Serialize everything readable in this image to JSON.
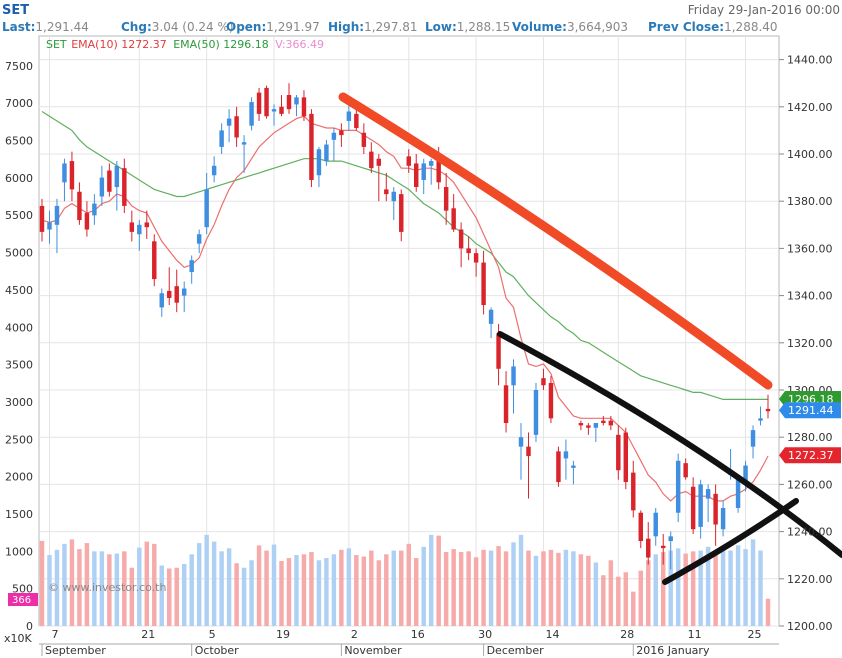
{
  "header": {
    "symbol": "SET",
    "date": "Friday 29-Jan-2016 00:00",
    "stats": [
      {
        "label": "Last:",
        "value": "1,291.44"
      },
      {
        "label": "Chg:",
        "value": "3.04 (0.24 %)"
      },
      {
        "label": "Open:",
        "value": "1,291.97"
      },
      {
        "label": "High:",
        "value": "1,297.81"
      },
      {
        "label": "Low:",
        "value": "1,288.15"
      },
      {
        "label": "Volume:",
        "value": "3,664,903"
      },
      {
        "label": "Prev Close:",
        "value": "1,288.40"
      }
    ]
  },
  "legend": [
    {
      "text": "SET",
      "color": "#2a9a3a"
    },
    {
      "text": "EMA(10) 1272.37",
      "color": "#e23b3b"
    },
    {
      "text": "EMA(50) 1296.18",
      "color": "#2a9a3a"
    },
    {
      "text": "V:366.49",
      "color": "#e98ccf"
    }
  ],
  "watermark": "© www.investor.co.th",
  "volume_badge": "366",
  "volume_unit": "x10K",
  "colors": {
    "up": "#3f8ee0",
    "down": "#d9242b",
    "ema10": "#ee6e6e",
    "ema50": "#5fb05f",
    "vol_up": "#aed0f4",
    "vol_down": "#f6aaaa",
    "trend_red": "#f04a26",
    "trend_black": "#111111",
    "badge_last": "#2e8bea",
    "badge_ema10": "#e3262d",
    "badge_ema50": "#2f9a2f"
  },
  "chart_data": {
    "type": "candlestick",
    "y_axis_price": {
      "ticks": [
        "1440.00",
        "1420.00",
        "1400.00",
        "1380.00",
        "1360.00",
        "1340.00",
        "1320.00",
        "1300.00",
        "1280.00",
        "1260.00",
        "1240.00",
        "1220.00",
        "1200.00"
      ],
      "range": [
        1200,
        1450
      ]
    },
    "y_axis_volume": {
      "ticks": [
        "7500",
        "7000",
        "6500",
        "6000",
        "5500",
        "5000",
        "4500",
        "4000",
        "3500",
        "3000",
        "2500",
        "2000",
        "1500",
        "1000",
        "500",
        "0"
      ],
      "range": [
        0,
        7900
      ]
    },
    "x_day_ticks": [
      "7",
      "21",
      "5",
      "19",
      "2",
      "16",
      "30",
      "14",
      "28",
      "11",
      "25"
    ],
    "x_month_labels": [
      "September",
      "October",
      "November",
      "December",
      "2016 January"
    ],
    "last_value_tags": [
      {
        "text": "1296.18",
        "value": 1296.18,
        "series": "EMA(50)"
      },
      {
        "text": "1291.44",
        "value": 1291.44,
        "series": "SET"
      },
      {
        "text": "1272.37",
        "value": 1272.37,
        "series": "EMA(10)"
      }
    ],
    "candles": [
      {
        "o": 1378,
        "h": 1381,
        "l": 1363,
        "c": 1367
      },
      {
        "o": 1368,
        "h": 1376,
        "l": 1362,
        "c": 1371
      },
      {
        "o": 1370,
        "h": 1381,
        "l": 1358,
        "c": 1378
      },
      {
        "o": 1388,
        "h": 1398,
        "l": 1380,
        "c": 1396
      },
      {
        "o": 1397,
        "h": 1401,
        "l": 1380,
        "c": 1385
      },
      {
        "o": 1384,
        "h": 1388,
        "l": 1370,
        "c": 1372
      },
      {
        "o": 1375,
        "h": 1380,
        "l": 1365,
        "c": 1368
      },
      {
        "o": 1374,
        "h": 1383,
        "l": 1370,
        "c": 1379
      },
      {
        "o": 1382,
        "h": 1395,
        "l": 1378,
        "c": 1390
      },
      {
        "o": 1393,
        "h": 1396,
        "l": 1382,
        "c": 1384
      },
      {
        "o": 1386,
        "h": 1397,
        "l": 1376,
        "c": 1395
      },
      {
        "o": 1394,
        "h": 1398,
        "l": 1375,
        "c": 1378
      },
      {
        "o": 1371,
        "h": 1376,
        "l": 1363,
        "c": 1367
      },
      {
        "o": 1366,
        "h": 1372,
        "l": 1359,
        "c": 1370
      },
      {
        "o": 1371,
        "h": 1376,
        "l": 1364,
        "c": 1369
      },
      {
        "o": 1363,
        "h": 1366,
        "l": 1344,
        "c": 1347
      },
      {
        "o": 1335,
        "h": 1343,
        "l": 1331,
        "c": 1341
      },
      {
        "o": 1342,
        "h": 1352,
        "l": 1336,
        "c": 1339
      },
      {
        "o": 1344,
        "h": 1351,
        "l": 1333,
        "c": 1337
      },
      {
        "o": 1340,
        "h": 1346,
        "l": 1333,
        "c": 1343
      },
      {
        "o": 1350,
        "h": 1357,
        "l": 1345,
        "c": 1355
      },
      {
        "o": 1362,
        "h": 1368,
        "l": 1358,
        "c": 1366
      },
      {
        "o": 1369,
        "h": 1392,
        "l": 1366,
        "c": 1385
      },
      {
        "o": 1391,
        "h": 1399,
        "l": 1388,
        "c": 1395
      },
      {
        "o": 1403,
        "h": 1413,
        "l": 1400,
        "c": 1410
      },
      {
        "o": 1412,
        "h": 1419,
        "l": 1405,
        "c": 1415
      },
      {
        "o": 1416,
        "h": 1420,
        "l": 1403,
        "c": 1407
      },
      {
        "o": 1404,
        "h": 1408,
        "l": 1392,
        "c": 1405
      },
      {
        "o": 1412,
        "h": 1424,
        "l": 1410,
        "c": 1422
      },
      {
        "o": 1426,
        "h": 1428,
        "l": 1414,
        "c": 1417
      },
      {
        "o": 1428,
        "h": 1429,
        "l": 1415,
        "c": 1416
      },
      {
        "o": 1418,
        "h": 1421,
        "l": 1412,
        "c": 1419
      },
      {
        "o": 1420,
        "h": 1425,
        "l": 1416,
        "c": 1417
      },
      {
        "o": 1425,
        "h": 1430,
        "l": 1417,
        "c": 1419
      },
      {
        "o": 1421,
        "h": 1425,
        "l": 1416,
        "c": 1424
      },
      {
        "o": 1424,
        "h": 1427,
        "l": 1414,
        "c": 1416
      },
      {
        "o": 1417,
        "h": 1419,
        "l": 1386,
        "c": 1389
      },
      {
        "o": 1391,
        "h": 1403,
        "l": 1386,
        "c": 1402
      },
      {
        "o": 1397,
        "h": 1406,
        "l": 1395,
        "c": 1404
      },
      {
        "o": 1406,
        "h": 1411,
        "l": 1397,
        "c": 1409
      },
      {
        "o": 1410,
        "h": 1413,
        "l": 1403,
        "c": 1408
      },
      {
        "o": 1414,
        "h": 1421,
        "l": 1410,
        "c": 1418
      },
      {
        "o": 1417,
        "h": 1422,
        "l": 1410,
        "c": 1411
      },
      {
        "o": 1409,
        "h": 1413,
        "l": 1400,
        "c": 1403
      },
      {
        "o": 1401,
        "h": 1405,
        "l": 1392,
        "c": 1394
      },
      {
        "o": 1398,
        "h": 1400,
        "l": 1380,
        "c": 1395
      },
      {
        "o": 1385,
        "h": 1392,
        "l": 1380,
        "c": 1383
      },
      {
        "o": 1380,
        "h": 1386,
        "l": 1372,
        "c": 1384
      },
      {
        "o": 1383,
        "h": 1385,
        "l": 1363,
        "c": 1367
      },
      {
        "o": 1399,
        "h": 1402,
        "l": 1392,
        "c": 1395
      },
      {
        "o": 1396,
        "h": 1400,
        "l": 1384,
        "c": 1386
      },
      {
        "o": 1389,
        "h": 1398,
        "l": 1383,
        "c": 1396
      },
      {
        "o": 1395,
        "h": 1398,
        "l": 1387,
        "c": 1397
      },
      {
        "o": 1400,
        "h": 1403,
        "l": 1385,
        "c": 1388
      },
      {
        "o": 1386,
        "h": 1392,
        "l": 1370,
        "c": 1376
      },
      {
        "o": 1377,
        "h": 1383,
        "l": 1367,
        "c": 1368
      },
      {
        "o": 1368,
        "h": 1371,
        "l": 1352,
        "c": 1360
      },
      {
        "o": 1360,
        "h": 1365,
        "l": 1355,
        "c": 1358
      },
      {
        "o": 1358,
        "h": 1360,
        "l": 1348,
        "c": 1354
      },
      {
        "o": 1354,
        "h": 1359,
        "l": 1332,
        "c": 1336
      },
      {
        "o": 1328,
        "h": 1335,
        "l": 1322,
        "c": 1334
      },
      {
        "o": 1324,
        "h": 1328,
        "l": 1302,
        "c": 1309
      },
      {
        "o": 1302,
        "h": 1308,
        "l": 1282,
        "c": 1286
      },
      {
        "o": 1302,
        "h": 1313,
        "l": 1290,
        "c": 1310
      },
      {
        "o": 1276,
        "h": 1286,
        "l": 1262,
        "c": 1280
      },
      {
        "o": 1276,
        "h": 1282,
        "l": 1254,
        "c": 1272
      },
      {
        "o": 1281,
        "h": 1303,
        "l": 1278,
        "c": 1300
      },
      {
        "o": 1305,
        "h": 1309,
        "l": 1300,
        "c": 1302
      },
      {
        "o": 1303,
        "h": 1306,
        "l": 1286,
        "c": 1288
      },
      {
        "o": 1274,
        "h": 1276,
        "l": 1259,
        "c": 1261
      },
      {
        "o": 1271,
        "h": 1279,
        "l": 1262,
        "c": 1274
      },
      {
        "o": 1267,
        "h": 1270,
        "l": 1260,
        "c": 1268
      },
      {
        "o": 1286,
        "h": 1287,
        "l": 1283,
        "c": 1285
      },
      {
        "o": 1285,
        "h": 1286,
        "l": 1281,
        "c": 1284
      },
      {
        "o": 1284,
        "h": 1286,
        "l": 1278,
        "c": 1286
      },
      {
        "o": 1287,
        "h": 1289,
        "l": 1285,
        "c": 1286
      },
      {
        "o": 1287,
        "h": 1289,
        "l": 1283,
        "c": 1285
      },
      {
        "o": 1281,
        "h": 1285,
        "l": 1262,
        "c": 1266
      },
      {
        "o": 1282,
        "h": 1284,
        "l": 1258,
        "c": 1261
      },
      {
        "o": 1265,
        "h": 1270,
        "l": 1246,
        "c": 1249
      },
      {
        "o": 1248,
        "h": 1249,
        "l": 1233,
        "c": 1236
      },
      {
        "o": 1237,
        "h": 1244,
        "l": 1226,
        "c": 1229
      },
      {
        "o": 1238,
        "h": 1250,
        "l": 1234,
        "c": 1248
      },
      {
        "o": 1234,
        "h": 1239,
        "l": 1226,
        "c": 1233
      },
      {
        "o": 1236,
        "h": 1240,
        "l": 1224,
        "c": 1238
      },
      {
        "o": 1248,
        "h": 1273,
        "l": 1244,
        "c": 1270
      },
      {
        "o": 1269,
        "h": 1271,
        "l": 1262,
        "c": 1263
      },
      {
        "o": 1259,
        "h": 1263,
        "l": 1239,
        "c": 1241
      },
      {
        "o": 1242,
        "h": 1262,
        "l": 1237,
        "c": 1260
      },
      {
        "o": 1254,
        "h": 1260,
        "l": 1244,
        "c": 1258
      },
      {
        "o": 1256,
        "h": 1260,
        "l": 1234,
        "c": 1243
      },
      {
        "o": 1241,
        "h": 1253,
        "l": 1238,
        "c": 1250
      },
      {
        "o": 1264,
        "h": 1275,
        "l": 1262,
        "c": 1265
      },
      {
        "o": 1250,
        "h": 1263,
        "l": 1248,
        "c": 1262
      },
      {
        "o": 1260,
        "h": 1270,
        "l": 1257,
        "c": 1268
      },
      {
        "o": 1276,
        "h": 1285,
        "l": 1271,
        "c": 1283
      },
      {
        "o": 1287,
        "h": 1293,
        "l": 1285,
        "c": 1288
      },
      {
        "o": 1292,
        "h": 1298,
        "l": 1288,
        "c": 1291
      }
    ],
    "volume": [
      1140,
      950,
      1020,
      1100,
      1160,
      1030,
      1110,
      1000,
      1000,
      960,
      970,
      1000,
      780,
      1050,
      1130,
      1100,
      810,
      770,
      780,
      830,
      960,
      1110,
      1220,
      1130,
      1000,
      1040,
      840,
      780,
      880,
      1080,
      1010,
      1090,
      870,
      910,
      950,
      960,
      990,
      880,
      910,
      960,
      1020,
      1040,
      950,
      930,
      1010,
      880,
      960,
      1010,
      1010,
      1100,
      910,
      1060,
      1220,
      1210,
      990,
      1030,
      990,
      1000,
      920,
      1020,
      1010,
      1070,
      1000,
      1120,
      1220,
      1010,
      940,
      1000,
      1020,
      980,
      1020,
      1000,
      960,
      940,
      850,
      680,
      880,
      660,
      720,
      460,
      740,
      880,
      960,
      990,
      1010,
      1040,
      970,
      1000,
      1010,
      1060,
      1000,
      1060,
      1010,
      1080,
      1030,
      1160,
      1010,
      366
    ],
    "ema10": [
      1372,
      1371,
      1372,
      1377,
      1379,
      1377,
      1375,
      1376,
      1379,
      1380,
      1383,
      1382,
      1378,
      1376,
      1375,
      1369,
      1363,
      1359,
      1355,
      1352,
      1353,
      1356,
      1364,
      1370,
      1378,
      1385,
      1390,
      1393,
      1398,
      1403,
      1406,
      1409,
      1411,
      1413,
      1415,
      1416,
      1413,
      1412,
      1411,
      1411,
      1410,
      1410,
      1410,
      1408,
      1406,
      1404,
      1401,
      1399,
      1394,
      1394,
      1393,
      1394,
      1394,
      1393,
      1391,
      1388,
      1383,
      1378,
      1373,
      1366,
      1359,
      1352,
      1339,
      1335,
      1322,
      1311,
      1310,
      1311,
      1307,
      1297,
      1293,
      1289,
      1288,
      1288,
      1288,
      1288,
      1288,
      1285,
      1282,
      1276,
      1270,
      1264,
      1261,
      1256,
      1253,
      1256,
      1257,
      1255,
      1255,
      1255,
      1253,
      1253,
      1255,
      1256,
      1258,
      1261,
      1266,
      1272
    ],
    "ema50": [
      1418,
      1416,
      1414,
      1412,
      1410,
      1406,
      1403,
      1401,
      1399,
      1397,
      1395,
      1393,
      1391,
      1389,
      1387,
      1385,
      1384,
      1383,
      1382,
      1382,
      1383,
      1384,
      1385,
      1386,
      1387,
      1388,
      1389,
      1390,
      1391,
      1392,
      1393,
      1394,
      1395,
      1396,
      1397,
      1398,
      1398,
      1398,
      1397,
      1397,
      1397,
      1396,
      1395,
      1394,
      1393,
      1392,
      1391,
      1389,
      1387,
      1385,
      1382,
      1379,
      1377,
      1375,
      1372,
      1369,
      1367,
      1365,
      1362,
      1360,
      1358,
      1354,
      1350,
      1348,
      1344,
      1340,
      1337,
      1334,
      1331,
      1329,
      1326,
      1324,
      1321,
      1320,
      1318,
      1316,
      1314,
      1312,
      1310,
      1308,
      1306,
      1305,
      1304,
      1303,
      1302,
      1301,
      1300,
      1299,
      1299,
      1298,
      1297,
      1296,
      1296,
      1296,
      1296,
      1296,
      1296,
      1296
    ]
  }
}
